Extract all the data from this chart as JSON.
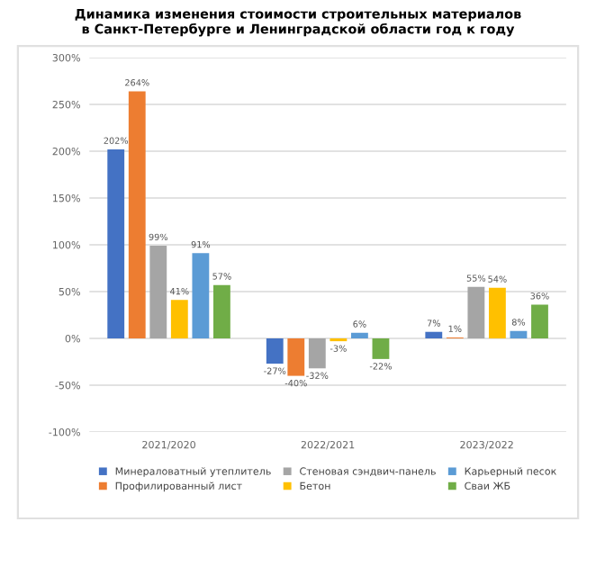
{
  "chart_data": {
    "type": "bar",
    "title": "Динамика изменения стоимости строительных материалов\nв Санкт-Петербурге и Ленинградской области год к году",
    "categories": [
      "2021/2020",
      "2022/2021",
      "2023/2022"
    ],
    "series": [
      {
        "name": "Минераловатный утеплитель",
        "color": "#4472c4",
        "values": [
          202,
          -27,
          7
        ],
        "value_labels": [
          "202%",
          "-27%",
          "7%"
        ]
      },
      {
        "name": "Профилированный лист",
        "color": "#ed7d31",
        "values": [
          264,
          -40,
          1
        ],
        "value_labels": [
          "264%",
          "-40%",
          "1%"
        ]
      },
      {
        "name": "Стеновая сэндвич-панель",
        "color": "#a5a5a5",
        "values": [
          99,
          -32,
          55
        ],
        "value_labels": [
          "99%",
          "-32%",
          "55%"
        ]
      },
      {
        "name": "Бетон",
        "color": "#ffc000",
        "values": [
          41,
          -3,
          54
        ],
        "value_labels": [
          "41%",
          "-3%",
          "54%"
        ]
      },
      {
        "name": "Карьерный песок",
        "color": "#5b9bd5",
        "values": [
          91,
          6,
          8
        ],
        "value_labels": [
          "91%",
          "6%",
          "8%"
        ]
      },
      {
        "name": "Сваи ЖБ",
        "color": "#70ad47",
        "values": [
          57,
          -22,
          36
        ],
        "value_labels": [
          "57%",
          "-22%",
          "36%"
        ]
      }
    ],
    "ylim": [
      -100,
      300
    ],
    "yticks": [
      {
        "value": -100,
        "label": "-100%"
      },
      {
        "value": -50,
        "label": "-50%"
      },
      {
        "value": 0,
        "label": "0%"
      },
      {
        "value": 50,
        "label": "50%"
      },
      {
        "value": 100,
        "label": "100%"
      },
      {
        "value": 150,
        "label": "150%"
      },
      {
        "value": 200,
        "label": "200%"
      },
      {
        "value": 250,
        "label": "250%"
      },
      {
        "value": 300,
        "label": "300%"
      }
    ],
    "grid": "y",
    "legend": "bottom"
  }
}
